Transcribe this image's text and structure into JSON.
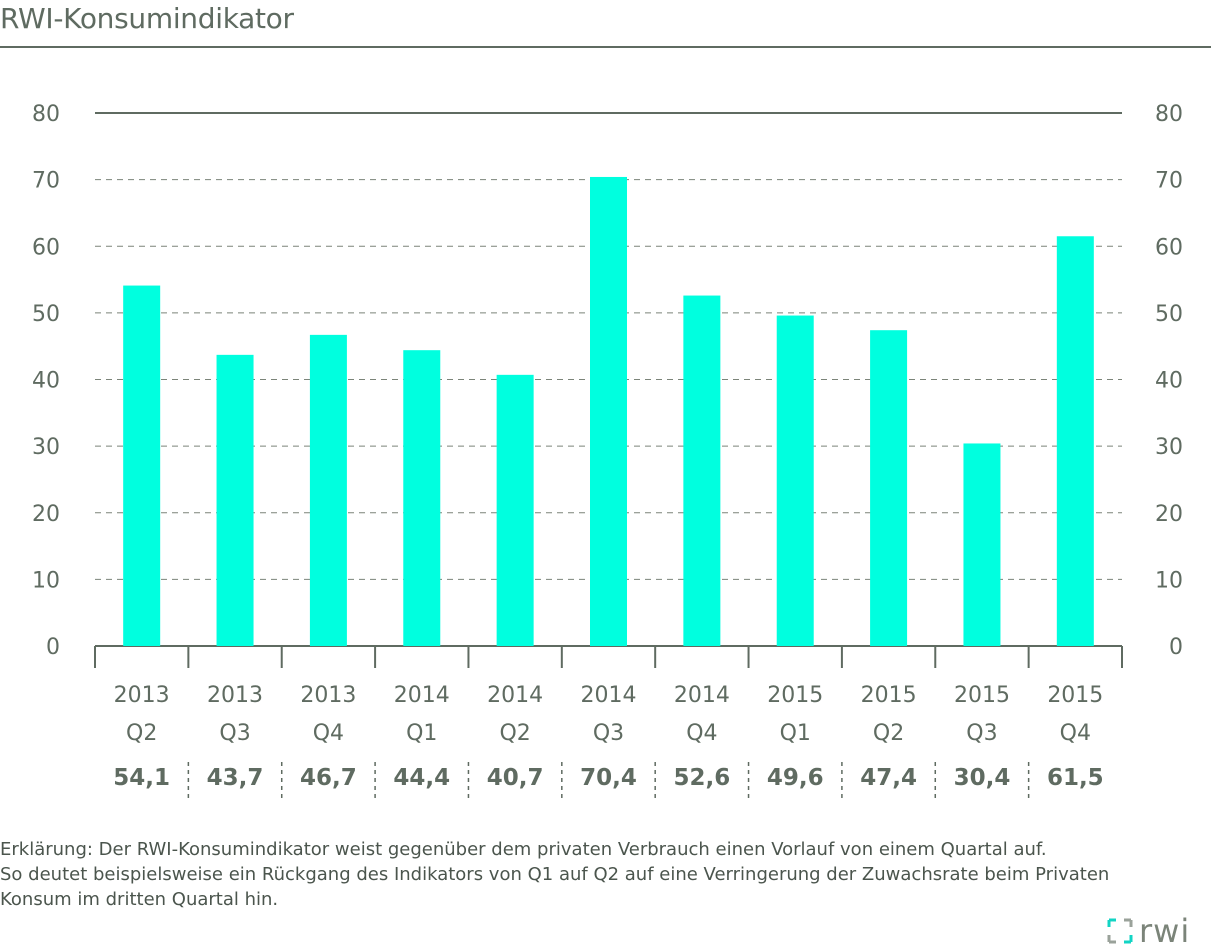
{
  "title": "RWI-Konsumindikator",
  "colors": {
    "bar": "#00ffdf",
    "text": "#5f6b61",
    "grid": "#7b8479",
    "logo_accent": "#12d4c4"
  },
  "chart_data": {
    "type": "bar",
    "title": "RWI-Konsumindikator",
    "xlabel": "",
    "ylabel": "",
    "ylim": [
      0,
      80
    ],
    "yticks": [
      "0",
      "10",
      "20",
      "30",
      "40",
      "50",
      "60",
      "70",
      "80"
    ],
    "grid": true,
    "categories": [
      {
        "year": "2013",
        "quarter": "Q2"
      },
      {
        "year": "2013",
        "quarter": "Q3"
      },
      {
        "year": "2013",
        "quarter": "Q4"
      },
      {
        "year": "2014",
        "quarter": "Q1"
      },
      {
        "year": "2014",
        "quarter": "Q2"
      },
      {
        "year": "2014",
        "quarter": "Q3"
      },
      {
        "year": "2014",
        "quarter": "Q4"
      },
      {
        "year": "2015",
        "quarter": "Q1"
      },
      {
        "year": "2015",
        "quarter": "Q2"
      },
      {
        "year": "2015",
        "quarter": "Q3"
      },
      {
        "year": "2015",
        "quarter": "Q4"
      }
    ],
    "values": [
      54.1,
      43.7,
      46.7,
      44.4,
      40.7,
      70.4,
      52.6,
      49.6,
      47.4,
      30.4,
      61.5
    ],
    "value_labels": [
      "54,1",
      "43,7",
      "46,7",
      "44,4",
      "40,7",
      "70,4",
      "52,6",
      "49,6",
      "47,4",
      "30,4",
      "61,5"
    ]
  },
  "note": {
    "line1": "Erklärung: Der RWI-Konsumindikator weist gegenüber dem privaten Verbrauch einen Vorlauf von einem Quartal auf.",
    "line2": "So deutet beispielsweise ein Rückgang des Indikators von Q1 auf Q2 auf eine Verringerung der Zuwachsrate beim Privaten",
    "line3": "Konsum im dritten Quartal hin."
  },
  "logo": {
    "text": "rwi"
  }
}
